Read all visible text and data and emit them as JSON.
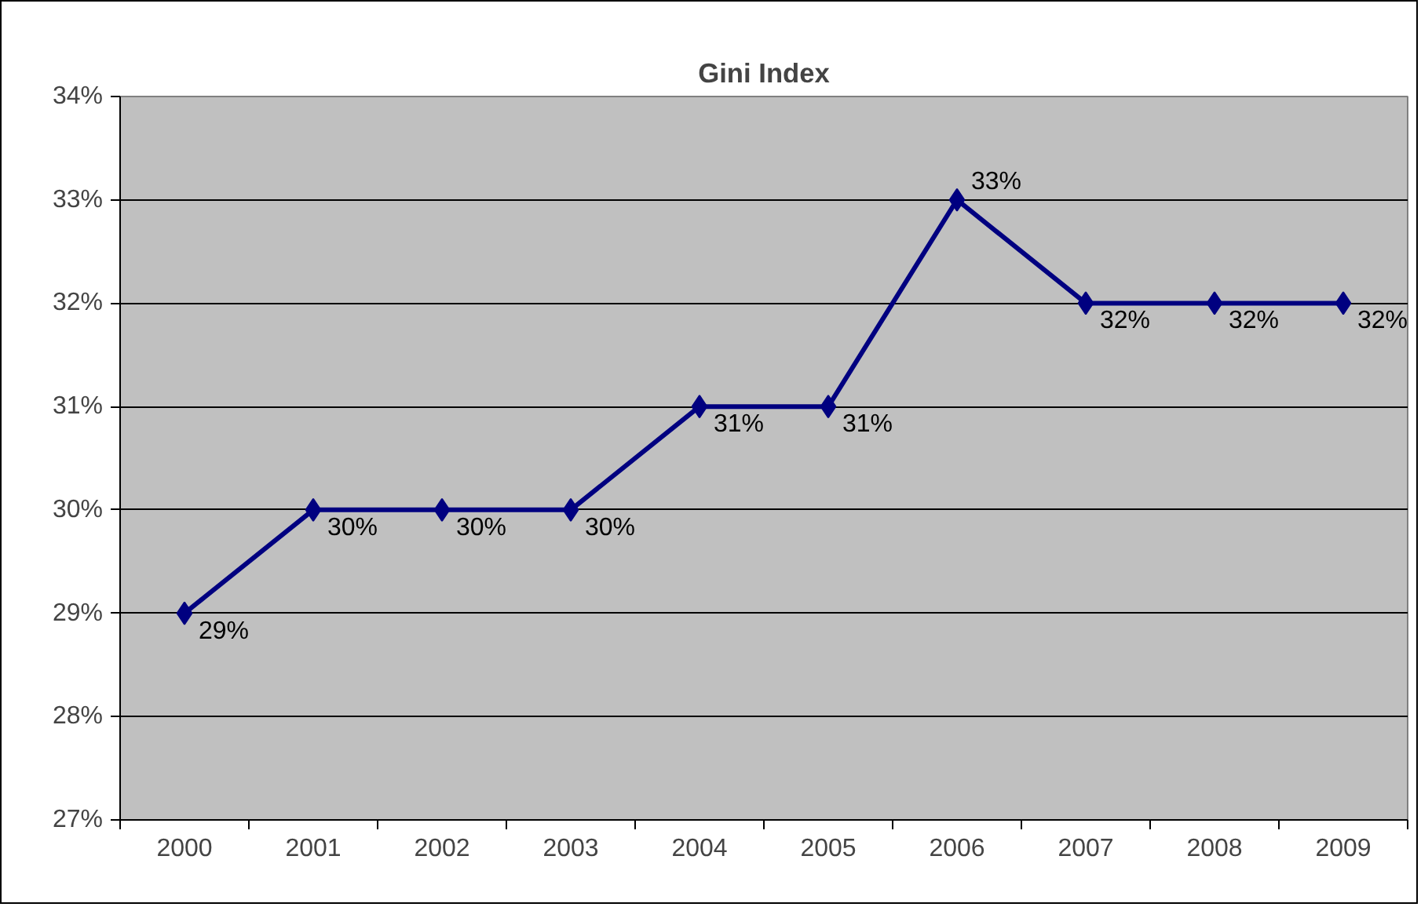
{
  "chart_data": {
    "type": "line",
    "title": "Gini Index",
    "categories": [
      "2000",
      "2001",
      "2002",
      "2003",
      "2004",
      "2005",
      "2006",
      "2007",
      "2008",
      "2009"
    ],
    "values": [
      29,
      30,
      30,
      30,
      31,
      31,
      33,
      32,
      32,
      32
    ],
    "value_labels": [
      "29%",
      "30%",
      "30%",
      "30%",
      "31%",
      "31%",
      "33%",
      "32%",
      "32%",
      "32%"
    ],
    "color": "#000080",
    "marker": "diamond",
    "grid": "y",
    "ylim": [
      27,
      34
    ],
    "yticks": [
      {
        "value": 27,
        "label": "27%"
      },
      {
        "value": 28,
        "label": "28%"
      },
      {
        "value": 29,
        "label": "29%"
      },
      {
        "value": 30,
        "label": "30%"
      },
      {
        "value": 31,
        "label": "31%"
      },
      {
        "value": 32,
        "label": "32%"
      },
      {
        "value": 33,
        "label": "33%"
      },
      {
        "value": 34,
        "label": "34%"
      }
    ]
  }
}
